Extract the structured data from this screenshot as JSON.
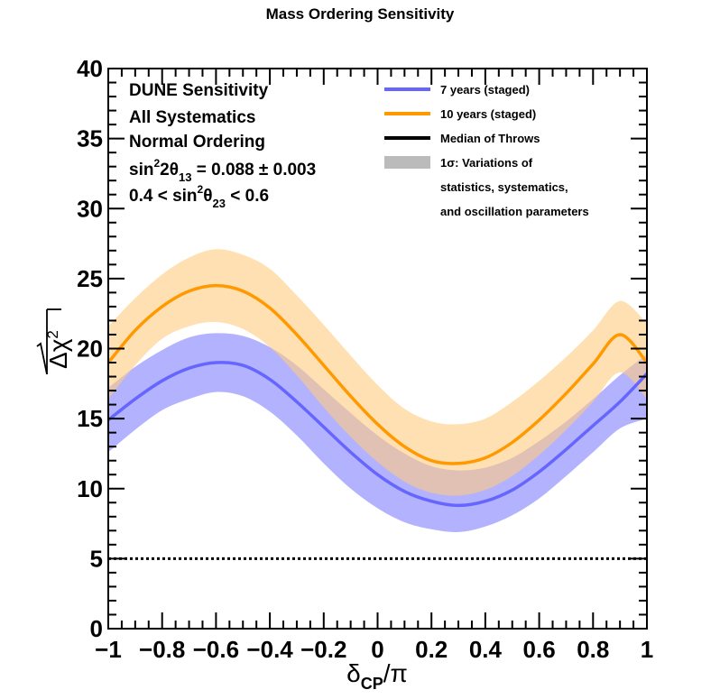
{
  "chart_data": {
    "type": "line",
    "title": "Mass Ordering Sensitivity",
    "xlabel": {
      "main": "δ",
      "sub": "CP",
      "tail": "/π"
    },
    "ylabel": {
      "radical": "√",
      "main": "Δχ",
      "sup": "2"
    },
    "xlim": [
      -1,
      1
    ],
    "ylim": [
      0,
      40
    ],
    "x_ticks": [
      -1,
      -0.8,
      -0.6,
      -0.4,
      -0.2,
      0,
      0.2,
      0.4,
      0.6,
      0.8,
      1
    ],
    "x_tick_labels": [
      "−1",
      "−0.8",
      "−0.6",
      "−0.4",
      "−0.2",
      "0",
      "0.2",
      "0.4",
      "0.6",
      "0.8",
      "1"
    ],
    "y_ticks": [
      0,
      5,
      10,
      15,
      20,
      25,
      30,
      35,
      40
    ],
    "y_tick_labels": [
      "0",
      "5",
      "10",
      "15",
      "20",
      "25",
      "30",
      "35",
      "40"
    ],
    "x": [
      -1,
      -0.9,
      -0.8,
      -0.7,
      -0.6,
      -0.5,
      -0.4,
      -0.3,
      -0.2,
      -0.1,
      0,
      0.1,
      0.2,
      0.3,
      0.4,
      0.5,
      0.6,
      0.7,
      0.8,
      0.9,
      1
    ],
    "series": [
      {
        "name": "7 years (staged)",
        "color": "#6666ff",
        "band_color": "#aaaaff",
        "median": [
          14.9,
          16.4,
          17.7,
          18.6,
          19.0,
          18.8,
          17.8,
          16.2,
          14.4,
          12.6,
          11.0,
          9.8,
          9.1,
          8.8,
          9.1,
          9.9,
          11.2,
          12.8,
          14.5,
          16.2,
          18.2
        ],
        "band_low": [
          12.6,
          14.2,
          15.6,
          16.4,
          16.9,
          16.6,
          15.5,
          13.8,
          11.8,
          10.0,
          8.6,
          7.6,
          7.1,
          6.9,
          7.3,
          8.1,
          9.3,
          10.9,
          12.6,
          14.3,
          15.0
        ],
        "band_high": [
          17.2,
          18.7,
          19.9,
          20.8,
          21.1,
          20.9,
          20.1,
          18.8,
          17.1,
          15.4,
          13.8,
          12.5,
          11.6,
          11.3,
          11.5,
          12.2,
          13.4,
          14.8,
          16.4,
          18.1,
          19.6
        ]
      },
      {
        "name": "10 years (staged)",
        "color": "#ff9900",
        "band_color": "#ffcc80",
        "median": [
          19.0,
          21.3,
          23.0,
          24.1,
          24.5,
          24.1,
          22.9,
          21.0,
          18.8,
          16.6,
          14.6,
          13.0,
          12.0,
          11.8,
          12.2,
          13.3,
          14.9,
          16.8,
          18.9,
          21.0,
          19.0
        ],
        "band_low": [
          16.4,
          18.8,
          20.7,
          21.6,
          21.9,
          21.4,
          20.1,
          18.1,
          15.8,
          13.7,
          11.9,
          10.5,
          9.7,
          9.5,
          9.9,
          10.9,
          12.4,
          14.2,
          16.2,
          18.3,
          16.4
        ],
        "band_high": [
          21.6,
          23.6,
          25.3,
          26.5,
          27.1,
          26.7,
          25.7,
          23.8,
          21.7,
          19.5,
          17.4,
          15.7,
          14.8,
          14.6,
          15.0,
          16.2,
          17.7,
          19.4,
          21.3,
          23.4,
          21.8
        ]
      }
    ],
    "reference_line": {
      "y": 5,
      "style": "dotted",
      "color": "#000000"
    },
    "annotations": [
      "DUNE Sensitivity",
      "All Systematics",
      "Normal Ordering",
      {
        "pre": "sin",
        "sup": "2",
        "mid": "2θ",
        "sub": "13",
        "post": " = 0.088 ± 0.003"
      },
      {
        "pre": "0.4 < sin",
        "sup": "2",
        "mid": "θ",
        "sub": "23",
        "post": " < 0.6"
      }
    ],
    "legend": {
      "position": "top-right",
      "entries": [
        {
          "label": "7 years (staged)",
          "kind": "line",
          "color": "#6666ff"
        },
        {
          "label": "10 years (staged)",
          "kind": "line",
          "color": "#ff9900"
        },
        {
          "label": "Median of Throws",
          "kind": "line",
          "color": "#000000"
        },
        {
          "label": "1σ: Variations of",
          "kind": "box",
          "color": "#bbbbbb",
          "extra_lines": [
            "statistics, systematics,",
            "and oscillation parameters"
          ]
        }
      ]
    }
  }
}
